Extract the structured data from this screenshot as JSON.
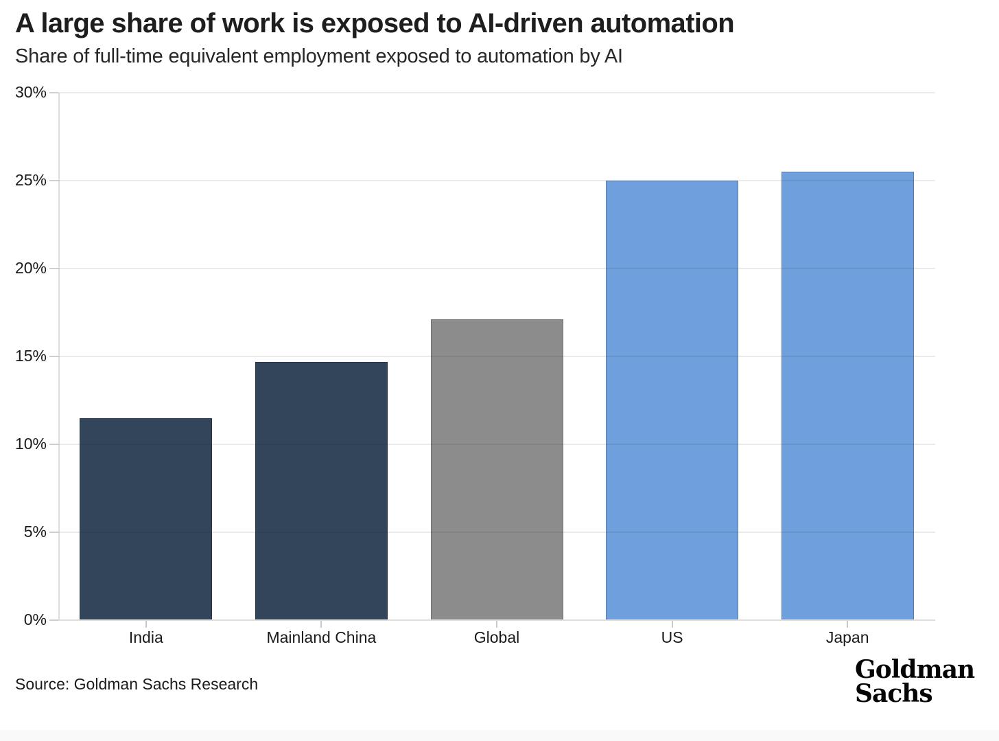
{
  "header": {
    "title": "A large share of work is exposed to AI-driven automation",
    "subtitle": "Share of full-time equivalent employment exposed to automation by AI"
  },
  "footer": {
    "source": "Source: Goldman Sachs Research",
    "logo_line1": "Goldman",
    "logo_line2": "Sachs"
  },
  "chart_data": {
    "type": "bar",
    "title": "A large share of work is exposed to AI-driven automation",
    "subtitle": "Share of full-time equivalent employment exposed to automation by AI",
    "categories": [
      "India",
      "Mainland China",
      "Global",
      "US",
      "Japan"
    ],
    "values": [
      11.5,
      14.7,
      17.1,
      25.0,
      25.5
    ],
    "bar_colors": [
      "#33455A",
      "#33455A",
      "#8C8C8C",
      "#6FA0DD",
      "#6FA0DD"
    ],
    "xlabel": "",
    "ylabel": "",
    "ylim": [
      0,
      30
    ],
    "ytick_step": 5,
    "ytick_suffix": "%",
    "grid": "horizontal",
    "legend": "none"
  },
  "colors": {
    "navy": "#33455A",
    "gray": "#8C8C8C",
    "blue": "#6FA0DD",
    "gridline": "#E6E6E6",
    "axis_line": "#DEDEDE",
    "tick_mark": "#CFCFCF",
    "text": "#1B1B1B",
    "title_text": "#1E1E1E",
    "bottom_strip": "#F9F9F9"
  }
}
